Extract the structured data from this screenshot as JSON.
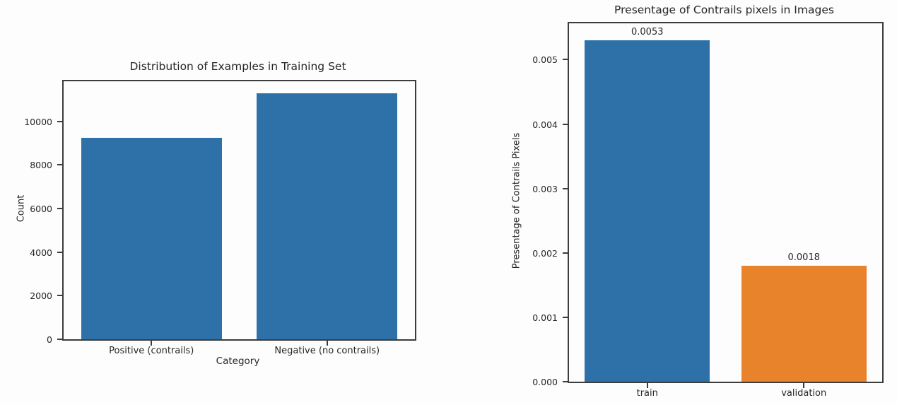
{
  "page": {
    "background_color": "#fdfdfd",
    "axis_color": "#3c3c3c",
    "text_color": "#262626"
  },
  "chart_data": [
    {
      "name": "training-set-distribution",
      "type": "bar",
      "title": "Distribution of Examples in Training Set",
      "xlabel": "Category",
      "ylabel": "Count",
      "categories": [
        "Positive (contrails)",
        "Negative (no contrails)"
      ],
      "values": [
        9240,
        11270
      ],
      "bar_labels": null,
      "bar_colors": [
        "#2e71a9",
        "#2e71a9"
      ],
      "ylim": [
        0,
        11835
      ],
      "grid": false,
      "legend": null,
      "yticks": [
        {
          "value": 0,
          "label": "0"
        },
        {
          "value": 2000,
          "label": "2000"
        },
        {
          "value": 4000,
          "label": "4000"
        },
        {
          "value": 6000,
          "label": "6000"
        },
        {
          "value": 8000,
          "label": "8000"
        },
        {
          "value": 10000,
          "label": "10000"
        }
      ]
    },
    {
      "name": "contrail-pixel-percentage",
      "type": "bar",
      "title": "Presentage of Contrails pixels in Images",
      "xlabel": "",
      "ylabel": "Presentage of Contrails Pixels",
      "categories": [
        "train",
        "validation"
      ],
      "values": [
        0.0053,
        0.0018
      ],
      "bar_labels": [
        "0.0053",
        "0.0018"
      ],
      "bar_colors": [
        "#2e71a9",
        "#e8832b"
      ],
      "ylim": [
        0,
        0.005565
      ],
      "grid": false,
      "legend": null,
      "yticks": [
        {
          "value": 0.0,
          "label": "0.000"
        },
        {
          "value": 0.001,
          "label": "0.001"
        },
        {
          "value": 0.002,
          "label": "0.002"
        },
        {
          "value": 0.003,
          "label": "0.003"
        },
        {
          "value": 0.004,
          "label": "0.004"
        },
        {
          "value": 0.005,
          "label": "0.005"
        }
      ]
    }
  ]
}
